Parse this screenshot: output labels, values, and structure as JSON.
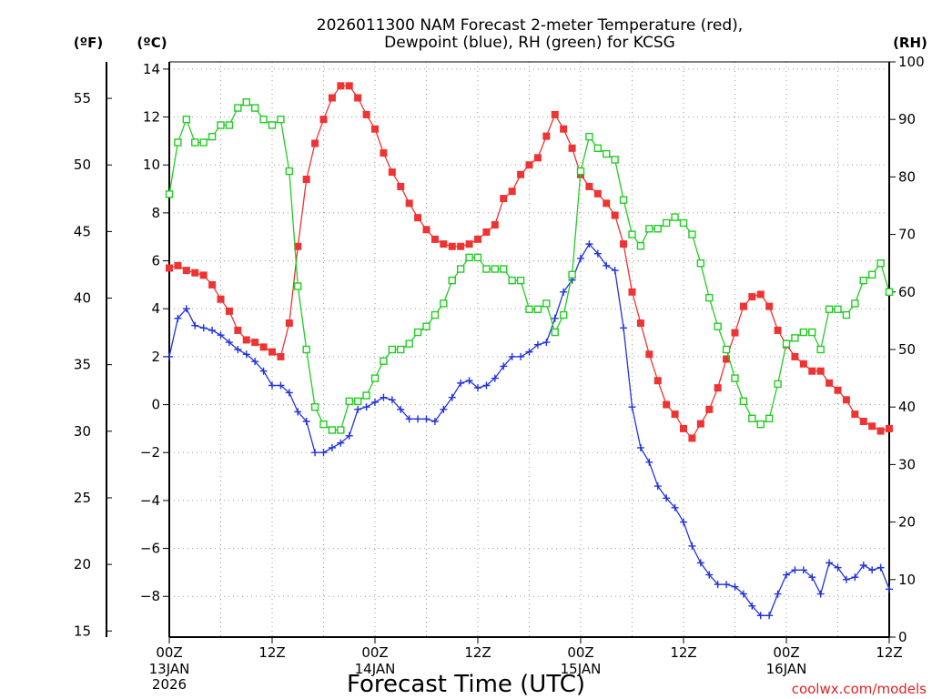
{
  "chart_data": {
    "type": "line",
    "title_line1": "2026011300 NAM Forecast 2-meter Temperature (red),",
    "title_line2": "Dewpoint (blue), RH (green) for KCSG",
    "units": {
      "fahrenheit": "(ºF)",
      "celsius": "(ºC)",
      "rh": "(RH)"
    },
    "xlabel": "Forecast Time (UTC)",
    "credit": "coolwx.com/models",
    "x_range_hours": [
      0,
      84
    ],
    "x_ticks": [
      {
        "hour": 0,
        "line1": "00Z",
        "line2": "13JAN",
        "line3": "2026"
      },
      {
        "hour": 12,
        "line1": "12Z",
        "line2": "",
        "line3": ""
      },
      {
        "hour": 24,
        "line1": "00Z",
        "line2": "14JAN",
        "line3": ""
      },
      {
        "hour": 36,
        "line1": "12Z",
        "line2": "",
        "line3": ""
      },
      {
        "hour": 48,
        "line1": "00Z",
        "line2": "15JAN",
        "line3": ""
      },
      {
        "hour": 60,
        "line1": "12Z",
        "line2": "",
        "line3": ""
      },
      {
        "hour": 72,
        "line1": "00Z",
        "line2": "16JAN",
        "line3": ""
      },
      {
        "hour": 84,
        "line1": "12Z",
        "line2": "",
        "line3": ""
      }
    ],
    "celsius_axis": {
      "ylim": [
        -9.7,
        14.3
      ],
      "ticks": [
        "14",
        "12",
        "10",
        "8",
        "6",
        "4",
        "2",
        "0",
        "−2",
        "−4",
        "−6",
        "−8"
      ],
      "tick_values": [
        14,
        12,
        10,
        8,
        6,
        4,
        2,
        0,
        -2,
        -4,
        -6,
        -8
      ]
    },
    "fahrenheit_axis": {
      "ticks": [
        "55",
        "50",
        "45",
        "40",
        "35",
        "30",
        "25",
        "20",
        "15"
      ],
      "tick_values": [
        55,
        50,
        45,
        40,
        35,
        30,
        25,
        20,
        15
      ]
    },
    "rh_axis": {
      "ylim": [
        0,
        100
      ],
      "ticks": [
        "100",
        "90",
        "80",
        "70",
        "60",
        "50",
        "40",
        "30",
        "20",
        "10",
        "0"
      ],
      "tick_values": [
        100,
        90,
        80,
        70,
        60,
        50,
        40,
        30,
        20,
        10,
        0
      ]
    },
    "grid": true,
    "series": [
      {
        "name": "Temperature (red)",
        "color": "#ee3333",
        "marker": "filled-square",
        "axis": "celsius",
        "x": [
          0,
          1,
          2,
          3,
          4,
          5,
          6,
          7,
          8,
          9,
          10,
          11,
          12,
          13,
          14,
          15,
          16,
          17,
          18,
          19,
          20,
          21,
          22,
          23,
          24,
          25,
          26,
          27,
          28,
          29,
          30,
          31,
          32,
          33,
          34,
          35,
          36,
          37,
          38,
          39,
          40,
          41,
          42,
          43,
          44,
          45,
          46,
          47,
          48,
          49,
          50,
          51,
          52,
          53,
          54,
          55,
          56,
          57,
          58,
          59,
          60,
          61,
          62,
          63,
          64,
          65,
          66,
          67,
          68,
          69,
          70,
          71,
          72,
          73,
          74,
          75,
          76,
          77,
          78,
          79,
          80,
          81,
          82,
          83,
          84
        ],
        "values": [
          5.7,
          5.8,
          5.6,
          5.5,
          5.4,
          5.0,
          4.4,
          3.9,
          3.1,
          2.7,
          2.6,
          2.4,
          2.2,
          2.0,
          3.4,
          6.6,
          9.4,
          10.9,
          11.9,
          12.8,
          13.3,
          13.3,
          12.8,
          12.1,
          11.5,
          10.5,
          9.7,
          9.1,
          8.4,
          7.8,
          7.3,
          6.9,
          6.7,
          6.6,
          6.6,
          6.7,
          6.9,
          7.2,
          7.5,
          8.6,
          8.9,
          9.6,
          10.0,
          10.3,
          11.2,
          12.1,
          11.5,
          10.7,
          9.6,
          9.1,
          8.8,
          8.4,
          7.9,
          6.7,
          4.7,
          3.4,
          2.1,
          1.0,
          0.0,
          -0.4,
          -1.0,
          -1.4,
          -0.8,
          -0.2,
          0.7,
          1.9,
          3.0,
          4.1,
          4.5,
          4.6,
          4.1,
          3.1,
          2.5,
          2.0,
          1.7,
          1.4,
          1.4,
          0.9,
          0.6,
          0.2,
          -0.4,
          -0.7,
          -0.9,
          -1.1,
          -1.0
        ]
      },
      {
        "name": "Dewpoint (blue)",
        "color": "#2233dd",
        "marker": "plus",
        "axis": "celsius",
        "x": [
          0,
          1,
          2,
          3,
          4,
          5,
          6,
          7,
          8,
          9,
          10,
          11,
          12,
          13,
          14,
          15,
          16,
          17,
          18,
          19,
          20,
          21,
          22,
          23,
          24,
          25,
          26,
          27,
          28,
          29,
          30,
          31,
          32,
          33,
          34,
          35,
          36,
          37,
          38,
          39,
          40,
          41,
          42,
          43,
          44,
          45,
          46,
          47,
          48,
          49,
          50,
          51,
          52,
          53,
          54,
          55,
          56,
          57,
          58,
          59,
          60,
          61,
          62,
          63,
          64,
          65,
          66,
          67,
          68,
          69,
          70,
          71,
          72,
          73,
          74,
          75,
          76,
          77,
          78,
          79,
          80,
          81,
          82,
          83,
          84
        ],
        "values": [
          2.0,
          3.6,
          4.0,
          3.3,
          3.2,
          3.1,
          2.9,
          2.6,
          2.3,
          2.1,
          1.8,
          1.4,
          0.8,
          0.8,
          0.5,
          -0.3,
          -0.7,
          -2.0,
          -2.0,
          -1.8,
          -1.6,
          -1.3,
          -0.2,
          -0.1,
          0.1,
          0.3,
          0.2,
          -0.2,
          -0.6,
          -0.6,
          -0.6,
          -0.7,
          -0.2,
          0.3,
          0.9,
          1.0,
          0.7,
          0.8,
          1.1,
          1.6,
          2.0,
          2.0,
          2.2,
          2.5,
          2.6,
          3.6,
          4.7,
          5.2,
          6.1,
          6.7,
          6.3,
          5.8,
          5.6,
          3.2,
          -0.1,
          -1.8,
          -2.4,
          -3.4,
          -3.9,
          -4.3,
          -4.9,
          -5.9,
          -6.6,
          -7.1,
          -7.5,
          -7.5,
          -7.6,
          -7.9,
          -8.4,
          -8.8,
          -8.8,
          -7.9,
          -7.1,
          -6.9,
          -6.9,
          -7.2,
          -7.9,
          -6.6,
          -6.8,
          -7.3,
          -7.2,
          -6.7,
          -6.9,
          -6.8,
          -7.7
        ]
      },
      {
        "name": "RH (green)",
        "color": "#22cc22",
        "marker": "open-square",
        "axis": "rh",
        "x": [
          0,
          1,
          2,
          3,
          4,
          5,
          6,
          7,
          8,
          9,
          10,
          11,
          12,
          13,
          14,
          15,
          16,
          17,
          18,
          19,
          20,
          21,
          22,
          23,
          24,
          25,
          26,
          27,
          28,
          29,
          30,
          31,
          32,
          33,
          34,
          35,
          36,
          37,
          38,
          39,
          40,
          41,
          42,
          43,
          44,
          45,
          46,
          47,
          48,
          49,
          50,
          51,
          52,
          53,
          54,
          55,
          56,
          57,
          58,
          59,
          60,
          61,
          62,
          63,
          64,
          65,
          66,
          67,
          68,
          69,
          70,
          71,
          72,
          73,
          74,
          75,
          76,
          77,
          78,
          79,
          80,
          81,
          82,
          83,
          84
        ],
        "values": [
          77,
          86,
          90,
          86,
          86,
          87,
          89,
          89,
          92,
          93,
          92,
          90,
          89,
          90,
          81,
          61,
          50,
          40,
          37,
          36,
          36,
          41,
          41,
          42,
          45,
          48,
          50,
          50,
          51,
          53,
          54,
          56,
          58,
          62,
          64,
          66,
          66,
          64,
          64,
          64,
          62,
          62,
          57,
          57,
          58,
          53,
          56,
          63,
          81,
          87,
          85,
          84,
          83,
          76,
          70,
          68,
          71,
          71,
          72,
          73,
          72,
          70,
          65,
          59,
          54,
          50,
          45,
          41,
          38,
          37,
          38,
          44,
          51,
          52,
          53,
          53,
          50,
          57,
          57,
          56,
          58,
          62,
          63,
          65,
          60
        ]
      }
    ]
  }
}
